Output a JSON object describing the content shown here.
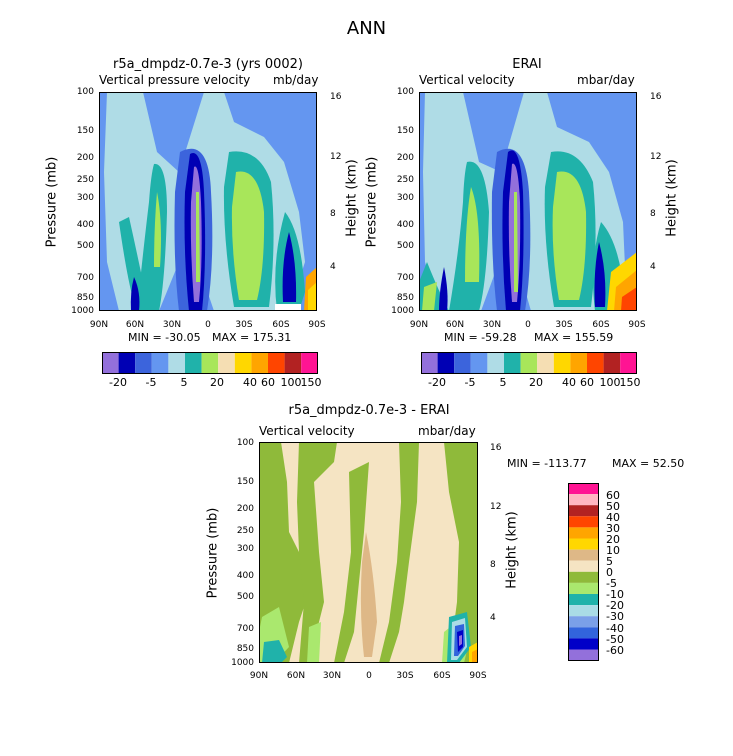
{
  "page_title": "ANN",
  "colors": {
    "panel_palette": [
      "#9370db",
      "#0000b4",
      "#3c64dc",
      "#6496f0",
      "#afdce6",
      "#20b2aa",
      "#a8e65a",
      "#f5deb3",
      "#ffd700",
      "#ffa500",
      "#ff4500",
      "#b22222",
      "#ff1493"
    ],
    "diff_palette": [
      "#9370db",
      "#0000c8",
      "#3264dc",
      "#7ba0e8",
      "#aadce6",
      "#20b2aa",
      "#aae86e",
      "#8fba3a",
      "#f5e4c3",
      "#deb887",
      "#ffd700",
      "#ffa500",
      "#ff4500",
      "#b22222",
      "#ffb6c1",
      "#ff1493"
    ]
  },
  "chart_data": [
    {
      "type": "heatmap",
      "plot_type": "filled-contour",
      "title": "r5a_dmpdz-0.7e-3 (yrs 0002)",
      "left_subtitle": "Vertical pressure velocity",
      "right_subtitle": "mb/day",
      "xlabel": "",
      "ylabel": "Pressure (mb)",
      "ylabel_right": "Height (km)",
      "x_ticks": [
        "90N",
        "60N",
        "30N",
        "0",
        "30S",
        "60S",
        "90S"
      ],
      "y_ticks": [
        "100",
        "150",
        "200",
        "250",
        "300",
        "400",
        "500",
        "700",
        "850",
        "1000"
      ],
      "y_right_ticks": [
        "16",
        "12",
        "8",
        "4"
      ],
      "ylim": [
        1000,
        100
      ],
      "min_label": "MIN = -30.05",
      "max_label": "MAX = 175.31",
      "min": -30.05,
      "max": 175.31,
      "levels": [
        -20,
        -5,
        5,
        20,
        40,
        60,
        100,
        150
      ],
      "level_labels": [
        "-20",
        "-5",
        "5",
        "20",
        "40",
        "60",
        "100",
        "150"
      ],
      "colorbar_orientation": "horizontal"
    },
    {
      "type": "heatmap",
      "plot_type": "filled-contour",
      "title": "ERAI",
      "left_subtitle": "Vertical velocity",
      "right_subtitle": "mbar/day",
      "xlabel": "",
      "ylabel": "Pressure (mb)",
      "ylabel_right": "Height (km)",
      "x_ticks": [
        "90N",
        "60N",
        "30N",
        "0",
        "30S",
        "60S",
        "90S"
      ],
      "y_ticks": [
        "100",
        "150",
        "200",
        "250",
        "300",
        "400",
        "500",
        "700",
        "850",
        "1000"
      ],
      "y_right_ticks": [
        "16",
        "12",
        "8",
        "4"
      ],
      "ylim": [
        1000,
        100
      ],
      "min_label": "MIN = -59.28",
      "max_label": "MAX = 155.59",
      "min": -59.28,
      "max": 155.59,
      "levels": [
        -20,
        -5,
        5,
        20,
        40,
        60,
        100,
        150
      ],
      "level_labels": [
        "-20",
        "-5",
        "5",
        "20",
        "40",
        "60",
        "100",
        "150"
      ],
      "colorbar_orientation": "horizontal"
    },
    {
      "type": "heatmap",
      "plot_type": "filled-contour",
      "title": "r5a_dmpdz-0.7e-3 - ERAI",
      "left_subtitle": "Vertical velocity",
      "right_subtitle": "mbar/day",
      "xlabel": "",
      "ylabel": "Pressure (mb)",
      "ylabel_right": "Height (km)",
      "x_ticks": [
        "90N",
        "60N",
        "30N",
        "0",
        "30S",
        "60S",
        "90S"
      ],
      "y_ticks": [
        "100",
        "150",
        "200",
        "250",
        "300",
        "400",
        "500",
        "700",
        "850",
        "1000"
      ],
      "y_right_ticks": [
        "16",
        "12",
        "8",
        "4"
      ],
      "ylim": [
        1000,
        100
      ],
      "min_label": "MIN = -113.77",
      "max_label": "MAX =  52.50",
      "min": -113.77,
      "max": 52.5,
      "levels": [
        60,
        50,
        40,
        30,
        20,
        10,
        5,
        0,
        -5,
        -10,
        -20,
        -30,
        -40,
        -50,
        -60
      ],
      "level_labels": [
        "60",
        "50",
        "40",
        "30",
        "20",
        "10",
        "5",
        "0",
        "-5",
        "-10",
        "-20",
        "-30",
        "-40",
        "-50",
        "-60"
      ],
      "colorbar_orientation": "vertical"
    }
  ]
}
